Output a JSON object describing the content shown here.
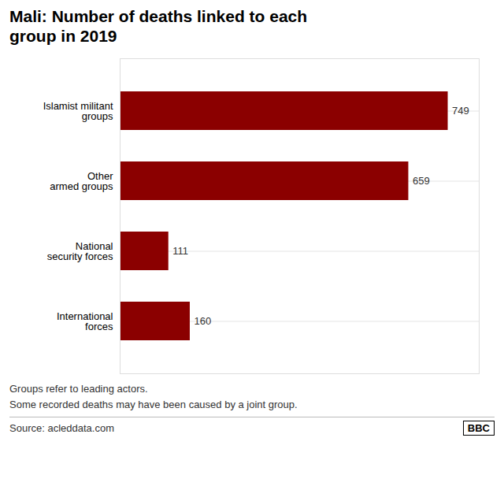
{
  "chart_data": {
    "type": "bar",
    "orientation": "horizontal",
    "title": "Mali: Number of deaths linked to each\ngroup in 2019",
    "categories": [
      "Islamist militant\ngroups",
      "Other\narmed groups",
      "National\nsecurity forces",
      "International\nforces"
    ],
    "values": [
      749,
      659,
      111,
      160
    ],
    "color": "#8B0000",
    "xlim": [
      0,
      820
    ],
    "tick_labels": "y",
    "grid": true,
    "data_labels": true,
    "annotations": [
      "Groups refer to leading actors.",
      "Some recorded deaths may have been caused by a joint group.",
      "Source: acleddata.com",
      "BBC"
    ]
  }
}
